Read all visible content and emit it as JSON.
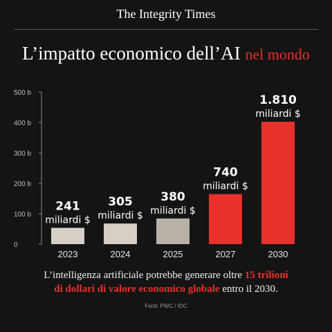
{
  "masthead": "The Integrity Times",
  "headline": {
    "main": "L’impatto economico dell’AI",
    "accent": "nel mondo"
  },
  "colors": {
    "light_bar": "#d6cfc6",
    "mid_bar": "#b9b1a8",
    "accent": "#e8312a",
    "background": "#141414"
  },
  "chart_data": {
    "type": "bar",
    "categories": [
      "2023",
      "2024",
      "2025",
      "2027",
      "2030"
    ],
    "values": [
      241,
      305,
      380,
      740,
      1810
    ],
    "value_labels": [
      {
        "amount": "241",
        "unit": "miliardi $"
      },
      {
        "amount": "305",
        "unit": "miliardi $"
      },
      {
        "amount": "380",
        "unit": "miliardi $"
      },
      {
        "amount": "740",
        "unit": "miliardi $"
      },
      {
        "amount": "1.810",
        "unit": "miliardi $"
      }
    ],
    "bar_colors": [
      "#d6cfc6",
      "#d6cfc6",
      "#b9b1a8",
      "#e8312a",
      "#e8312a"
    ],
    "yticks": [
      "0",
      "100 b",
      "200 b",
      "300 b",
      "400 b",
      "500 b"
    ],
    "ylim": [
      0,
      2250
    ],
    "title": "",
    "xlabel": "",
    "ylabel": "",
    "grid": false
  },
  "caption": {
    "part1": "L’intelligenza artificiale potrebbe generare oltre ",
    "highlight1": "15 trilioni",
    "highlight2": "di dollari di valore economico globale",
    "part2": " entro il 2030."
  },
  "source": "Fonti: PWC / IDC"
}
